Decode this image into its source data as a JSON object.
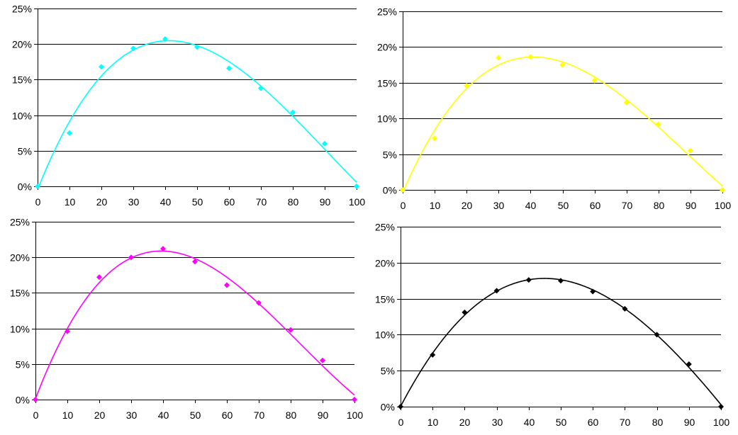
{
  "chart_data": [
    {
      "type": "scatter",
      "title": "",
      "xlabel": "",
      "ylabel": "",
      "color": "#00FFFF",
      "x": [
        0,
        10,
        20,
        30,
        40,
        50,
        60,
        70,
        80,
        90,
        100
      ],
      "values": [
        0.0,
        7.5,
        16.8,
        19.4,
        20.7,
        19.6,
        16.6,
        13.8,
        10.4,
        6.0,
        0.0
      ],
      "trendline": "polynomial",
      "xlim": [
        0,
        100
      ],
      "ylim": [
        0,
        25
      ],
      "x_ticks": [
        "0",
        "10",
        "20",
        "30",
        "40",
        "50",
        "60",
        "70",
        "80",
        "90",
        "100"
      ],
      "y_ticks": [
        "0%",
        "5%",
        "10%",
        "15%",
        "20%",
        "25%"
      ],
      "grid": "horizontal"
    },
    {
      "type": "scatter",
      "title": "",
      "xlabel": "",
      "ylabel": "",
      "color": "#FFFF00",
      "x": [
        0,
        10,
        20,
        30,
        40,
        50,
        60,
        70,
        80,
        90,
        100
      ],
      "values": [
        0.0,
        7.2,
        14.6,
        18.5,
        18.6,
        17.5,
        15.3,
        12.2,
        9.2,
        5.5,
        0.0
      ],
      "trendline": "polynomial",
      "xlim": [
        0,
        100
      ],
      "ylim": [
        0,
        25
      ],
      "x_ticks": [
        "0",
        "10",
        "20",
        "30",
        "40",
        "50",
        "60",
        "70",
        "80",
        "90",
        "100"
      ],
      "y_ticks": [
        "0%",
        "5%",
        "10%",
        "15%",
        "20%",
        "25%"
      ],
      "grid": "horizontal"
    },
    {
      "type": "scatter",
      "title": "",
      "xlabel": "",
      "ylabel": "",
      "color": "#FF00FF",
      "x": [
        0,
        10,
        20,
        30,
        40,
        50,
        60,
        70,
        80,
        90,
        100
      ],
      "values": [
        0.0,
        9.6,
        17.2,
        20.0,
        21.2,
        19.4,
        16.1,
        13.6,
        9.8,
        5.5,
        0.0
      ],
      "trendline": "polynomial",
      "xlim": [
        0,
        100
      ],
      "ylim": [
        0,
        25
      ],
      "x_ticks": [
        "0",
        "10",
        "20",
        "30",
        "40",
        "50",
        "60",
        "70",
        "80",
        "90",
        "100"
      ],
      "y_ticks": [
        "0%",
        "5%",
        "10%",
        "15%",
        "20%",
        "25%"
      ],
      "grid": "horizontal"
    },
    {
      "type": "scatter",
      "title": "",
      "xlabel": "",
      "ylabel": "",
      "color": "#000000",
      "x": [
        0,
        10,
        20,
        30,
        40,
        50,
        60,
        70,
        80,
        90,
        100
      ],
      "values": [
        0.0,
        7.2,
        13.1,
        16.1,
        17.6,
        17.5,
        16.0,
        13.6,
        10.0,
        5.9,
        0.0
      ],
      "trendline": "polynomial",
      "xlim": [
        0,
        100
      ],
      "ylim": [
        0,
        25
      ],
      "x_ticks": [
        "0",
        "10",
        "20",
        "30",
        "40",
        "50",
        "60",
        "70",
        "80",
        "90",
        "100"
      ],
      "y_ticks": [
        "0%",
        "5%",
        "10%",
        "15%",
        "20%",
        "25%"
      ],
      "grid": "horizontal"
    }
  ]
}
